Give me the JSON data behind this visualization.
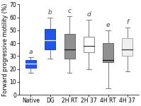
{
  "categories": [
    "Native",
    "DG",
    "2H RT",
    "2H 37",
    "4H RT",
    "4H 37"
  ],
  "letters": [
    "a",
    "b",
    "c",
    "d",
    "e",
    "f"
  ],
  "boxes": [
    {
      "q1": 21,
      "median": 24,
      "q3": 27,
      "whisker_low": 17,
      "whisker_high": 29
    },
    {
      "q1": 35,
      "median": 42,
      "q3": 51,
      "whisker_low": 28,
      "whisker_high": 60
    },
    {
      "q1": 28,
      "median": 35,
      "q3": 47,
      "whisker_low": 17,
      "whisker_high": 61
    },
    {
      "q1": 33,
      "median": 38,
      "q3": 45,
      "whisker_low": 20,
      "whisker_high": 58
    },
    {
      "q1": 25,
      "median": 27,
      "q3": 40,
      "whisker_low": 5,
      "whisker_high": 50
    },
    {
      "q1": 30,
      "median": 35,
      "q3": 44,
      "whisker_low": 18,
      "whisker_high": 52
    }
  ],
  "colors": [
    "#2255e8",
    "#2255e8",
    "#909090",
    "#ffffff",
    "#909090",
    "#f0f0f0"
  ],
  "edge_colors": [
    "#1a3dcc",
    "#1a3dcc",
    "#666666",
    "#888888",
    "#666666",
    "#aaaaaa"
  ],
  "median_colors": [
    "#ffffff",
    "#ffffff",
    "#111111",
    "#333333",
    "#111111",
    "#333333"
  ],
  "ylabel": "Forward progressive motility (%)",
  "ylim": [
    0,
    70
  ],
  "yticks": [
    0,
    10,
    20,
    30,
    40,
    50,
    60,
    70
  ],
  "tick_fontsize": 5.5,
  "label_fontsize": 5.8,
  "letter_fontsize": 6.5,
  "box_width": 0.55
}
